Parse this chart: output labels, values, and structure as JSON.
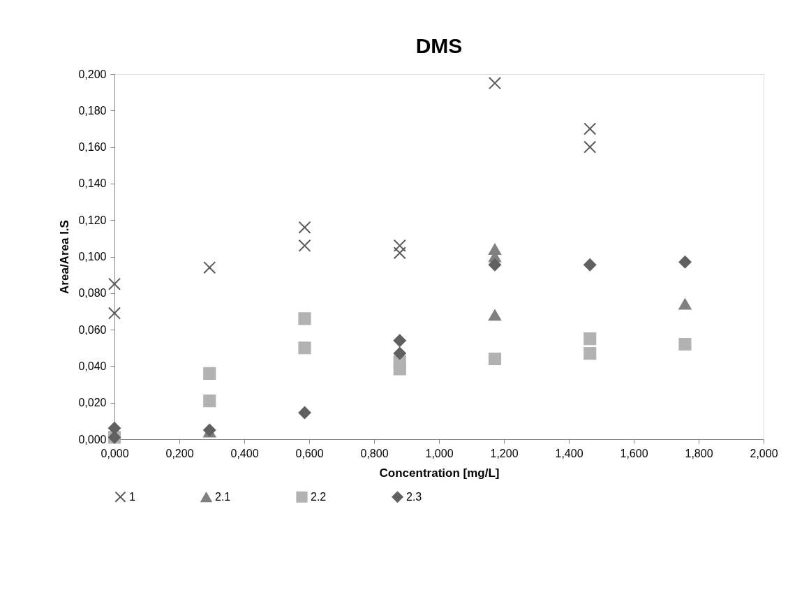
{
  "chart_data": {
    "type": "scatter",
    "title": "DMS",
    "xlabel": "Concentration [mg/L]",
    "ylabel": "Area/Area I.S",
    "xlim": [
      0,
      2
    ],
    "ylim": [
      0,
      0.2
    ],
    "xticks": [
      {
        "value": 0,
        "label": "0,000"
      },
      {
        "value": 0.2,
        "label": "0,200"
      },
      {
        "value": 0.4,
        "label": "0,400"
      },
      {
        "value": 0.6,
        "label": "0,600"
      },
      {
        "value": 0.8,
        "label": "0,800"
      },
      {
        "value": 1.0,
        "label": "1,000"
      },
      {
        "value": 1.2,
        "label": "1,200"
      },
      {
        "value": 1.4,
        "label": "1,400"
      },
      {
        "value": 1.6,
        "label": "1,600"
      },
      {
        "value": 1.8,
        "label": "1,800"
      },
      {
        "value": 2.0,
        "label": "2,000"
      }
    ],
    "yticks": [
      {
        "value": 0,
        "label": "0,000"
      },
      {
        "value": 0.02,
        "label": "0,020"
      },
      {
        "value": 0.04,
        "label": "0,040"
      },
      {
        "value": 0.06,
        "label": "0,060"
      },
      {
        "value": 0.08,
        "label": "0,080"
      },
      {
        "value": 0.1,
        "label": "0,100"
      },
      {
        "value": 0.12,
        "label": "0,120"
      },
      {
        "value": 0.14,
        "label": "0,140"
      },
      {
        "value": 0.16,
        "label": "0,160"
      },
      {
        "value": 0.18,
        "label": "0,180"
      },
      {
        "value": 0.2,
        "label": "0,200"
      }
    ],
    "grid": false,
    "legend": "bottom",
    "series": [
      {
        "name": "1",
        "color": "#595959",
        "marker": "cross",
        "x": [
          0,
          0,
          0.293,
          0.586,
          0.586,
          0.879,
          0.879,
          1.172,
          1.465,
          1.465
        ],
        "values": [
          0.085,
          0.069,
          0.094,
          0.116,
          0.106,
          0.106,
          0.102,
          0.195,
          0.17,
          0.16
        ]
      },
      {
        "name": "2.1",
        "color": "#808080",
        "marker": "triangle",
        "x": [
          0.293,
          1.172,
          1.172,
          1.172,
          1.758
        ],
        "values": [
          0.004,
          0.104,
          0.1,
          0.068,
          0.074
        ]
      },
      {
        "name": "2.2",
        "color": "#b2b2b2",
        "marker": "square",
        "x": [
          0,
          0.293,
          0.293,
          0.586,
          0.586,
          0.879,
          0.879,
          1.172,
          1.465,
          1.465,
          1.758
        ],
        "values": [
          0.001,
          0.036,
          0.021,
          0.066,
          0.05,
          0.0425,
          0.0385,
          0.044,
          0.055,
          0.047,
          0.052
        ]
      },
      {
        "name": "2.3",
        "color": "#606060",
        "marker": "diamond",
        "x": [
          0,
          0,
          0.293,
          0.586,
          0.879,
          0.879,
          1.172,
          1.465,
          1.758
        ],
        "values": [
          0.006,
          0.001,
          0.005,
          0.0145,
          0.054,
          0.047,
          0.0955,
          0.0955,
          0.097
        ]
      }
    ]
  }
}
